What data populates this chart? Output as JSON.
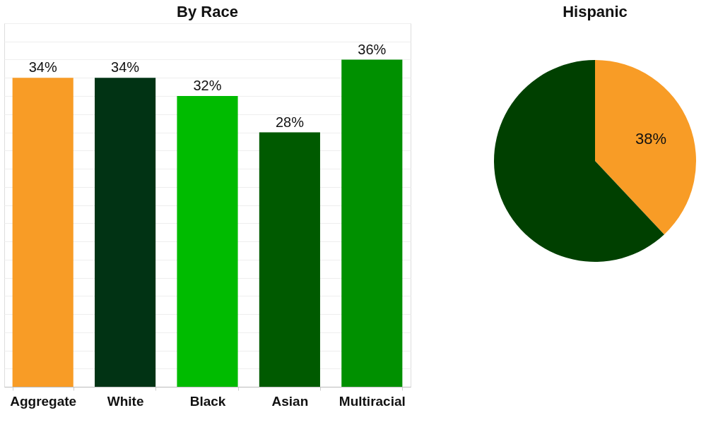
{
  "chart_data": [
    {
      "type": "bar",
      "title": "By Race",
      "categories": [
        "Aggregate",
        "White",
        "Black",
        "Asian",
        "Multiracial"
      ],
      "values": [
        34,
        34,
        32,
        28,
        36
      ],
      "colors": [
        "#f89c26",
        "#013314",
        "#00bb00",
        "#005a00",
        "#009000"
      ],
      "value_labels": [
        "34%",
        "34%",
        "32%",
        "28%",
        "36%"
      ],
      "grid": "y",
      "tick_labels": "x"
    },
    {
      "type": "pie",
      "title": "Hispanic",
      "categories": [
        null,
        null
      ],
      "values": [
        38,
        62
      ],
      "colors": [
        "#f89c26",
        "#004000"
      ],
      "value_labels": [
        "38%",
        null
      ]
    }
  ]
}
